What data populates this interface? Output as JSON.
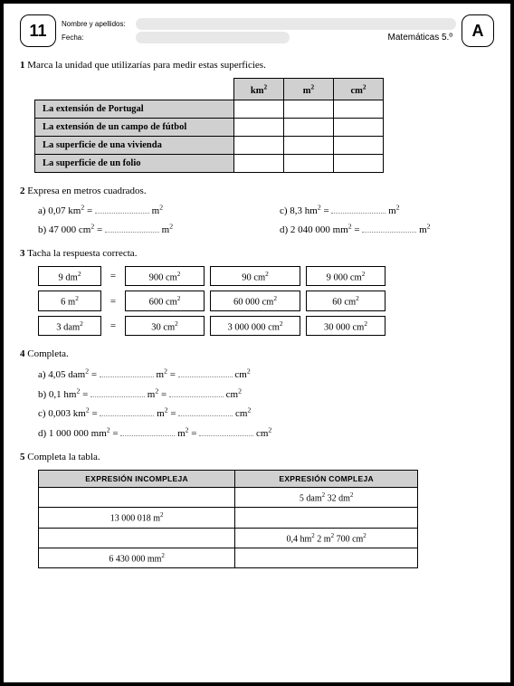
{
  "header": {
    "number": "11",
    "name_label": "Nombre y apellidos:",
    "date_label": "Fecha:",
    "subject": "Matemáticas 5.º",
    "letter": "A"
  },
  "ex1": {
    "num": "1",
    "prompt": "Marca la unidad que utilizarías para medir estas superficies.",
    "cols": [
      "km²",
      "m²",
      "cm²"
    ],
    "rows": [
      "La extensión de Portugal",
      "La extensión de un campo de fútbol",
      "La superficie de una vivienda",
      "La superficie de un folio"
    ]
  },
  "ex2": {
    "num": "2",
    "prompt": "Expresa en metros cuadrados.",
    "items": {
      "a": "a) 0,07 km² =",
      "a_unit": "m²",
      "b": "b) 47 000 cm² =",
      "b_unit": "m²",
      "c": "c) 8,3 hm² =",
      "c_unit": "m²",
      "d": "d) 2 040 000 mm² =",
      "d_unit": "m²"
    }
  },
  "ex3": {
    "num": "3",
    "prompt": "Tacha la respuesta correcta.",
    "rows": [
      {
        "left": "9 dm²",
        "opts": [
          "900 cm²",
          "90 cm²",
          "9 000 cm²"
        ]
      },
      {
        "left": "6 m²",
        "opts": [
          "600 cm²",
          "60 000 cm²",
          "60 cm²"
        ]
      },
      {
        "left": "3 dam²",
        "opts": [
          "30 cm²",
          "3 000 000 cm²",
          "30 000 cm²"
        ]
      }
    ]
  },
  "ex4": {
    "num": "4",
    "prompt": "Completa.",
    "lines": [
      {
        "pre": "a) 4,05 dam² =",
        "u1": "m² =",
        "u2": "cm²"
      },
      {
        "pre": "b) 0,1 hm² =",
        "u1": "m² =",
        "u2": "cm²"
      },
      {
        "pre": "c) 0,003 km² =",
        "u1": "m² =",
        "u2": "cm²"
      },
      {
        "pre": "d) 1 000 000 mm² =",
        "u1": "m² =",
        "u2": "cm²"
      }
    ]
  },
  "ex5": {
    "num": "5",
    "prompt": "Completa la tabla.",
    "cols": [
      "EXPRESIÓN INCOMPLEJA",
      "EXPRESIÓN COMPLEJA"
    ],
    "rows": [
      [
        "",
        "5 dam² 32 dm²"
      ],
      [
        "13 000 018 m²",
        ""
      ],
      [
        "",
        "0,4 hm² 2 m² 700 cm²"
      ],
      [
        "6 430 000 mm²",
        ""
      ]
    ]
  }
}
